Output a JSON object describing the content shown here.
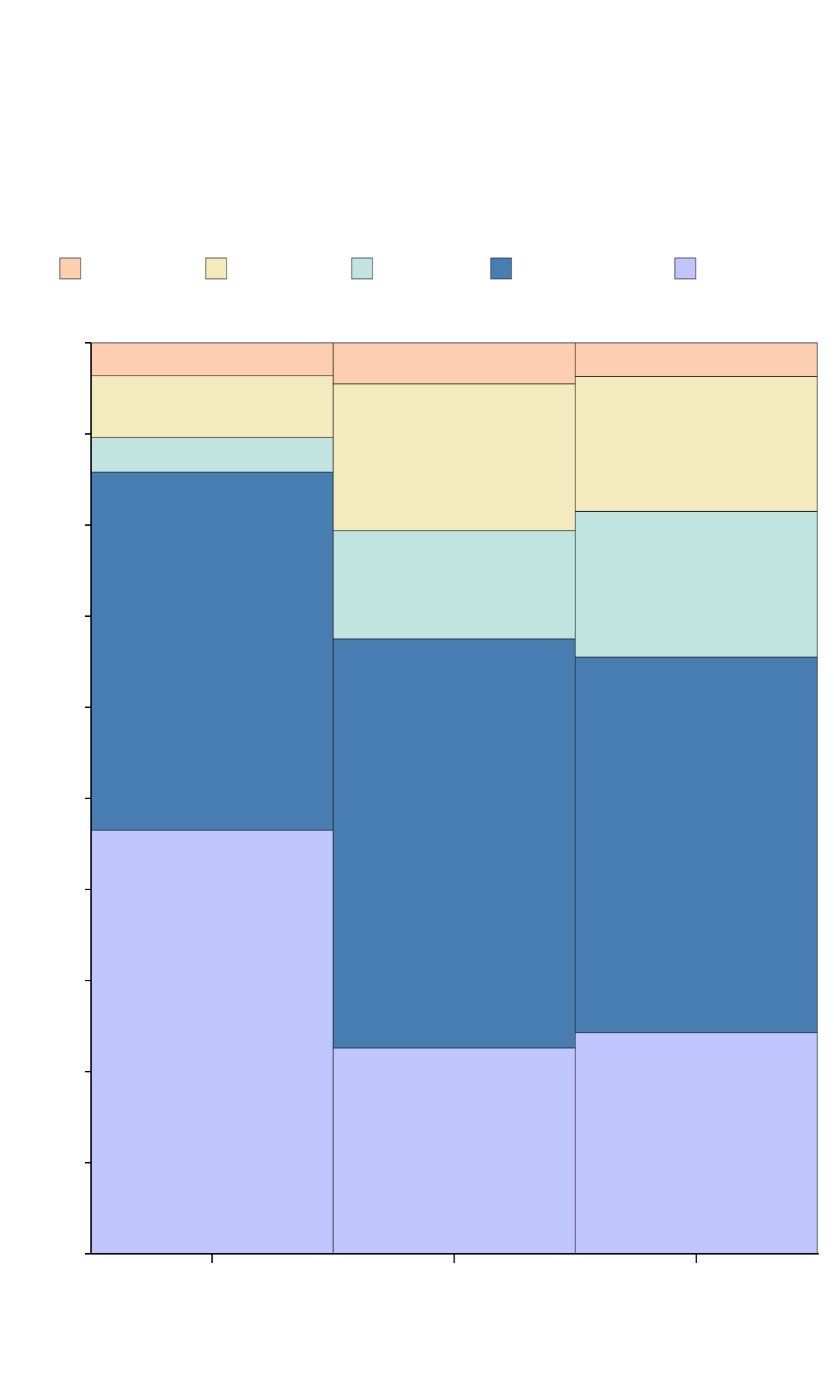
{
  "chart_data": {
    "type": "bar",
    "stacked": true,
    "normalized": true,
    "title": "",
    "xlabel": "",
    "ylabel": "",
    "categories": [
      "",
      "",
      ""
    ],
    "ylim": [
      0,
      1
    ],
    "ytick_count": 10,
    "grid": false,
    "legend_position": "top",
    "series": [
      {
        "name": "",
        "color": "#bfc5fd",
        "values": [
          0.465,
          0.226,
          0.243
        ]
      },
      {
        "name": "",
        "color": "#477db0",
        "values": [
          0.393,
          0.449,
          0.412
        ]
      },
      {
        "name": "",
        "color": "#c1e4e1",
        "values": [
          0.038,
          0.119,
          0.16
        ]
      },
      {
        "name": "",
        "color": "#f3ebbd",
        "values": [
          0.068,
          0.161,
          0.148
        ]
      },
      {
        "name": "",
        "color": "#fdceb0",
        "values": [
          0.036,
          0.045,
          0.037
        ]
      }
    ],
    "legend_order": [
      4,
      3,
      2,
      1,
      0
    ]
  }
}
